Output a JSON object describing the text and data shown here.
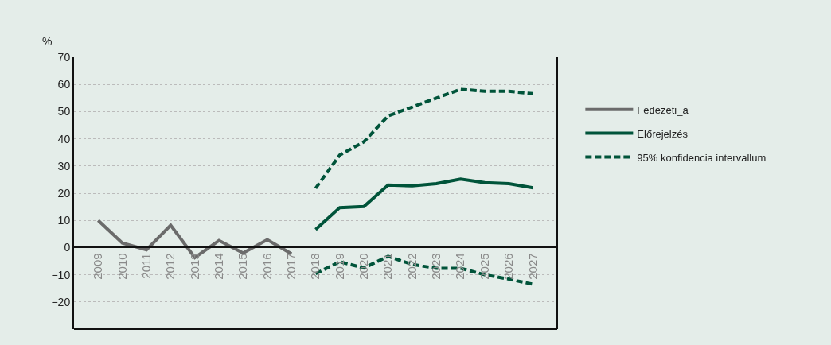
{
  "chart_data": {
    "type": "line",
    "ylabel": "%",
    "categories": [
      "2009",
      "2010",
      "2011",
      "2012",
      "2013",
      "2014",
      "2015",
      "2016",
      "2017",
      "2018",
      "2019",
      "2020",
      "2021",
      "2022",
      "2023",
      "2024",
      "2025",
      "2026",
      "2027"
    ],
    "series": [
      {
        "name": "Fedezeti_a",
        "color": "#6b6b6b",
        "line_style": "solid",
        "values": [
          10,
          1.7,
          -0.8,
          8.2,
          -3.7,
          2.6,
          -2,
          2.9,
          -2.3,
          null,
          null,
          null,
          null,
          null,
          null,
          null,
          null,
          null,
          null
        ]
      },
      {
        "name": "Előrejelzés",
        "color": "#00543a",
        "line_style": "solid",
        "values": [
          null,
          null,
          null,
          null,
          null,
          null,
          null,
          null,
          null,
          6.6,
          14.7,
          15.1,
          23,
          22.7,
          23.5,
          25.2,
          23.9,
          23.5,
          22
        ]
      },
      {
        "name": "95% konfidencia intervallum",
        "color": "#00543a",
        "line_style": "dashed",
        "values": [
          null,
          null,
          null,
          null,
          null,
          null,
          null,
          null,
          null,
          21.8,
          34,
          38.9,
          48.4,
          51.7,
          55,
          58.2,
          57.5,
          57.5,
          56.6
        ]
      },
      {
        "color": "#00543a",
        "line_style": "dashed",
        "values": [
          null,
          null,
          null,
          null,
          null,
          null,
          null,
          null,
          null,
          -9.6,
          -5.2,
          -7.5,
          -3.2,
          -6.2,
          -7.6,
          -7.6,
          -10,
          -11.6,
          -13.5
        ]
      }
    ],
    "ylim": [
      -30,
      70
    ],
    "yticks": [
      {
        "value": -20,
        "label": "−20"
      },
      {
        "value": -10,
        "label": "−10"
      },
      0,
      10,
      20,
      30,
      40,
      50,
      60,
      70
    ],
    "grid": "y",
    "legend": "right",
    "marker": "none"
  }
}
